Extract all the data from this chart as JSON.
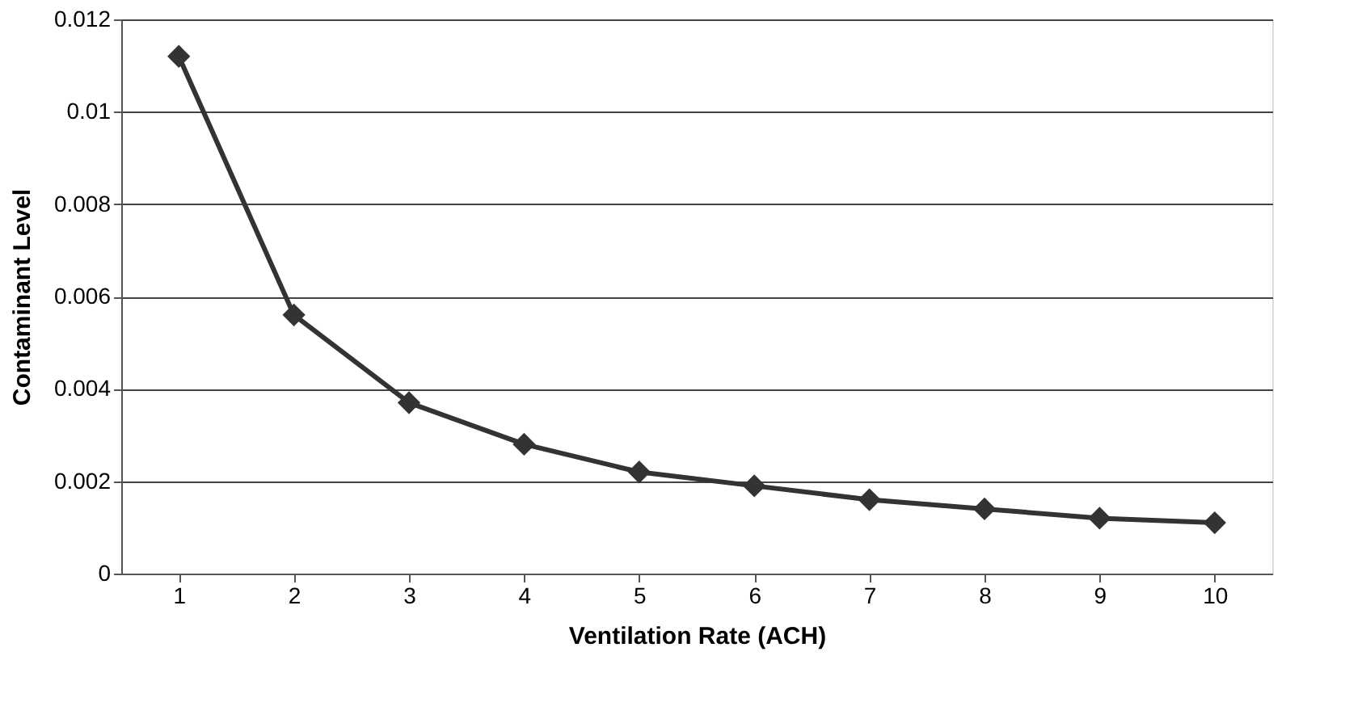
{
  "chart_data": {
    "type": "line",
    "xlabel": "Ventilation Rate (ACH)",
    "ylabel": "Contaminant Level",
    "categories": [
      "1",
      "2",
      "3",
      "4",
      "5",
      "6",
      "7",
      "8",
      "9",
      "10"
    ],
    "series": [
      {
        "color": "#333333",
        "values": [
          0.0112,
          0.0056,
          0.0037,
          0.0028,
          0.0022,
          0.0019,
          0.0016,
          0.0014,
          0.0012,
          0.0011
        ]
      }
    ],
    "ylim": [
      0,
      0.012
    ],
    "yticks": [
      0,
      0.002,
      0.004,
      0.006,
      0.008,
      0.01,
      0.012
    ],
    "grid": "y",
    "marker": "diamond",
    "line_style": "solid"
  }
}
